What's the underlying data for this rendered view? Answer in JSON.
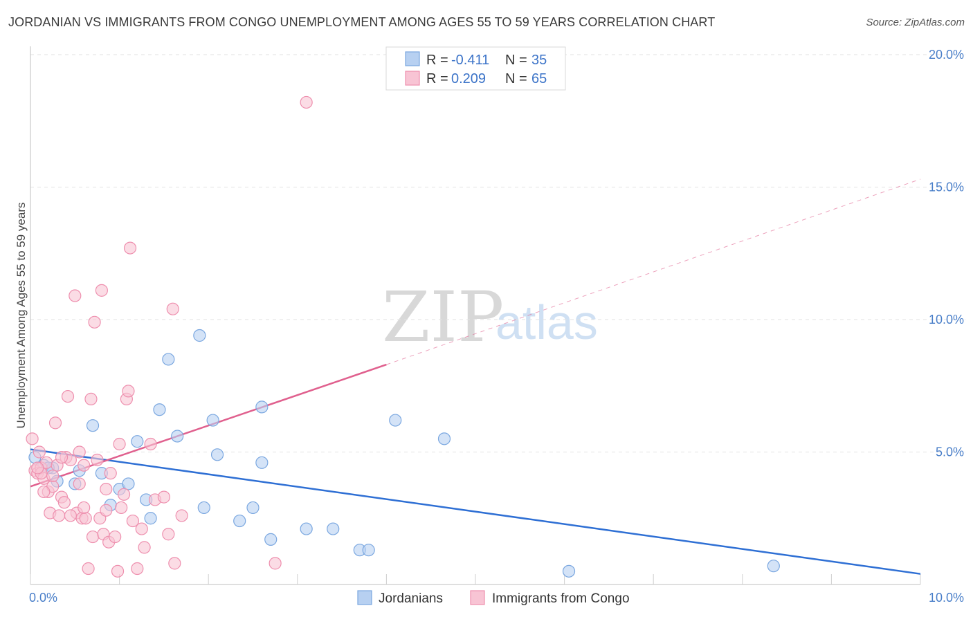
{
  "chart_data": {
    "type": "scatter",
    "title": "JORDANIAN VS IMMIGRANTS FROM CONGO UNEMPLOYMENT AMONG AGES 55 TO 59 YEARS CORRELATION CHART",
    "source": "Source: ZipAtlas.com",
    "xlabel": "",
    "ylabel": "Unemployment Among Ages 55 to 59 years",
    "xlim": [
      0,
      10
    ],
    "ylim": [
      0,
      20
    ],
    "x_tick_labels": [
      "0.0%",
      "10.0%"
    ],
    "y_ticks": [
      5,
      10,
      15,
      20
    ],
    "y_tick_labels": [
      "5.0%",
      "10.0%",
      "15.0%",
      "20.0%"
    ],
    "watermark": {
      "zip": "ZIP",
      "atlas": "atlas"
    },
    "legend": {
      "r_label": "R =",
      "n_label": "N =",
      "rows": [
        {
          "r": "-0.411",
          "n": "35",
          "color": "#a9c8ef"
        },
        {
          "r": "0.209",
          "n": "65",
          "color": "#f5b5c8"
        }
      ]
    },
    "series": [
      {
        "name": "Jordanians",
        "color": "#7aa7e0",
        "fill": "#b7d0f1",
        "trend": {
          "x0": 0,
          "y0": 5.1,
          "x1": 10,
          "y1": 0.4,
          "color": "#2e6fd4",
          "dashed_extension": false
        },
        "points": [
          [
            0.05,
            4.8
          ],
          [
            0.15,
            4.5
          ],
          [
            0.25,
            4.4
          ],
          [
            0.3,
            3.9
          ],
          [
            0.5,
            3.8
          ],
          [
            0.55,
            4.3
          ],
          [
            0.7,
            6.0
          ],
          [
            0.8,
            4.2
          ],
          [
            0.9,
            3.0
          ],
          [
            1.0,
            3.6
          ],
          [
            1.1,
            3.8
          ],
          [
            1.2,
            5.4
          ],
          [
            1.3,
            3.2
          ],
          [
            1.35,
            2.5
          ],
          [
            1.45,
            6.6
          ],
          [
            1.55,
            8.5
          ],
          [
            1.65,
            5.6
          ],
          [
            1.9,
            9.4
          ],
          [
            1.95,
            2.9
          ],
          [
            2.05,
            6.2
          ],
          [
            2.1,
            4.9
          ],
          [
            2.35,
            2.4
          ],
          [
            2.5,
            2.9
          ],
          [
            2.6,
            6.7
          ],
          [
            2.6,
            4.6
          ],
          [
            2.7,
            1.7
          ],
          [
            3.1,
            2.1
          ],
          [
            3.4,
            2.1
          ],
          [
            3.7,
            1.3
          ],
          [
            3.8,
            1.3
          ],
          [
            4.1,
            6.2
          ],
          [
            4.65,
            5.5
          ],
          [
            6.05,
            0.5
          ],
          [
            8.35,
            0.7
          ],
          [
            0.2,
            4.4
          ]
        ]
      },
      {
        "name": "Immigrants from Congo",
        "color": "#ee8fae",
        "fill": "#f8c4d4",
        "trend": {
          "x0": 0,
          "y0": 3.7,
          "x1": 4.0,
          "y1": 8.3,
          "x2": 10,
          "y2": 15.3,
          "color": "#e0608e",
          "dashed_extension": true
        },
        "points": [
          [
            0.02,
            5.5
          ],
          [
            0.05,
            4.3
          ],
          [
            0.08,
            4.2
          ],
          [
            0.1,
            5.0
          ],
          [
            0.12,
            4.4
          ],
          [
            0.15,
            4.0
          ],
          [
            0.18,
            4.6
          ],
          [
            0.2,
            3.5
          ],
          [
            0.22,
            2.7
          ],
          [
            0.25,
            3.7
          ],
          [
            0.28,
            6.1
          ],
          [
            0.3,
            4.5
          ],
          [
            0.32,
            2.6
          ],
          [
            0.35,
            3.3
          ],
          [
            0.38,
            3.1
          ],
          [
            0.4,
            4.8
          ],
          [
            0.42,
            7.1
          ],
          [
            0.45,
            4.7
          ],
          [
            0.5,
            10.9
          ],
          [
            0.52,
            2.7
          ],
          [
            0.55,
            5.0
          ],
          [
            0.58,
            2.5
          ],
          [
            0.6,
            4.5
          ],
          [
            0.62,
            2.5
          ],
          [
            0.65,
            0.6
          ],
          [
            0.68,
            7.0
          ],
          [
            0.7,
            1.8
          ],
          [
            0.72,
            9.9
          ],
          [
            0.75,
            4.7
          ],
          [
            0.78,
            2.5
          ],
          [
            0.8,
            11.1
          ],
          [
            0.82,
            1.9
          ],
          [
            0.85,
            2.8
          ],
          [
            0.85,
            3.6
          ],
          [
            0.88,
            1.6
          ],
          [
            0.9,
            4.2
          ],
          [
            0.95,
            1.8
          ],
          [
            0.98,
            0.5
          ],
          [
            1.0,
            5.3
          ],
          [
            1.02,
            2.9
          ],
          [
            1.05,
            3.4
          ],
          [
            1.08,
            7.0
          ],
          [
            1.1,
            7.3
          ],
          [
            1.12,
            12.7
          ],
          [
            1.15,
            2.4
          ],
          [
            1.2,
            0.6
          ],
          [
            1.25,
            2.1
          ],
          [
            1.28,
            1.4
          ],
          [
            1.35,
            5.3
          ],
          [
            1.4,
            3.2
          ],
          [
            1.5,
            3.3
          ],
          [
            1.55,
            1.9
          ],
          [
            1.6,
            10.4
          ],
          [
            1.62,
            0.8
          ],
          [
            1.7,
            2.6
          ],
          [
            2.75,
            0.8
          ],
          [
            3.1,
            18.2
          ],
          [
            0.15,
            3.5
          ],
          [
            0.35,
            4.8
          ],
          [
            0.45,
            2.6
          ],
          [
            0.55,
            3.8
          ],
          [
            0.6,
            2.9
          ],
          [
            0.25,
            4.1
          ],
          [
            0.12,
            4.2
          ],
          [
            0.08,
            4.4
          ]
        ]
      }
    ]
  }
}
